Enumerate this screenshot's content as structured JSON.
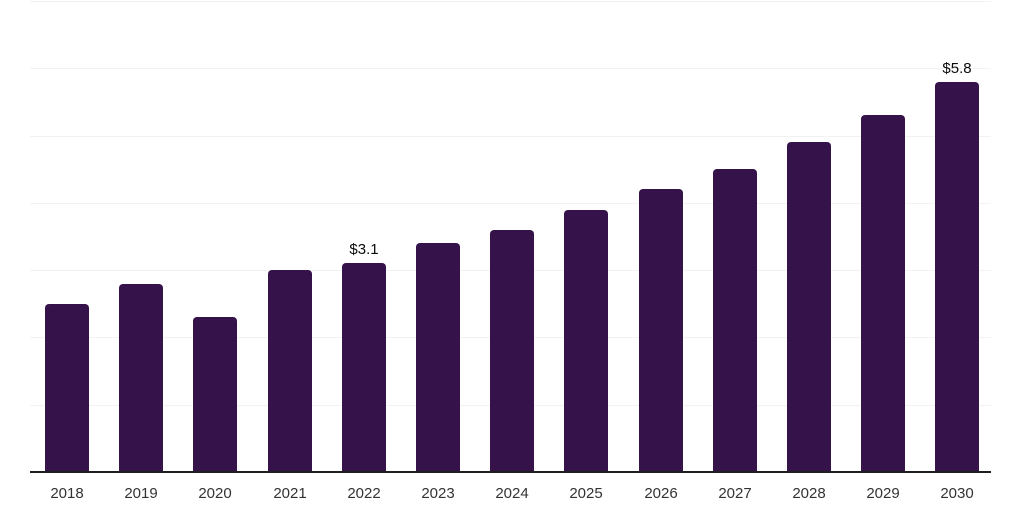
{
  "chart_data": {
    "type": "bar",
    "title": "",
    "xlabel": "",
    "ylabel": "",
    "categories": [
      "2018",
      "2019",
      "2020",
      "2021",
      "2022",
      "2023",
      "2024",
      "2025",
      "2026",
      "2027",
      "2028",
      "2029",
      "2030"
    ],
    "values": [
      2.5,
      2.8,
      2.3,
      3.0,
      3.1,
      3.4,
      3.6,
      3.9,
      4.2,
      4.5,
      4.9,
      5.3,
      5.8
    ],
    "value_unit": "$",
    "data_labels": [
      {
        "category": "2022",
        "text": "$3.1"
      },
      {
        "category": "2030",
        "text": "$5.8"
      }
    ],
    "ylim": [
      0,
      7
    ],
    "grid": true,
    "gridline_step": 1,
    "legend": "none",
    "colors": {
      "bar": "#35124a",
      "gridline": "#f2f2f3",
      "axis": "#1f1f1f",
      "tick_label": "#333333",
      "data_label": "#0a0a0a",
      "background": "#ffffff"
    }
  }
}
